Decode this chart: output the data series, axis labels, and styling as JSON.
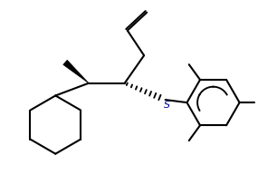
{
  "bg_color": "#ffffff",
  "line_color": "#000000",
  "s_color": "#00008b",
  "figsize": [
    3.06,
    2.14
  ],
  "dpi": 100,
  "linewidth": 1.5,
  "s_label": "S",
  "xlim": [
    0,
    10
  ],
  "ylim": [
    0,
    7
  ]
}
